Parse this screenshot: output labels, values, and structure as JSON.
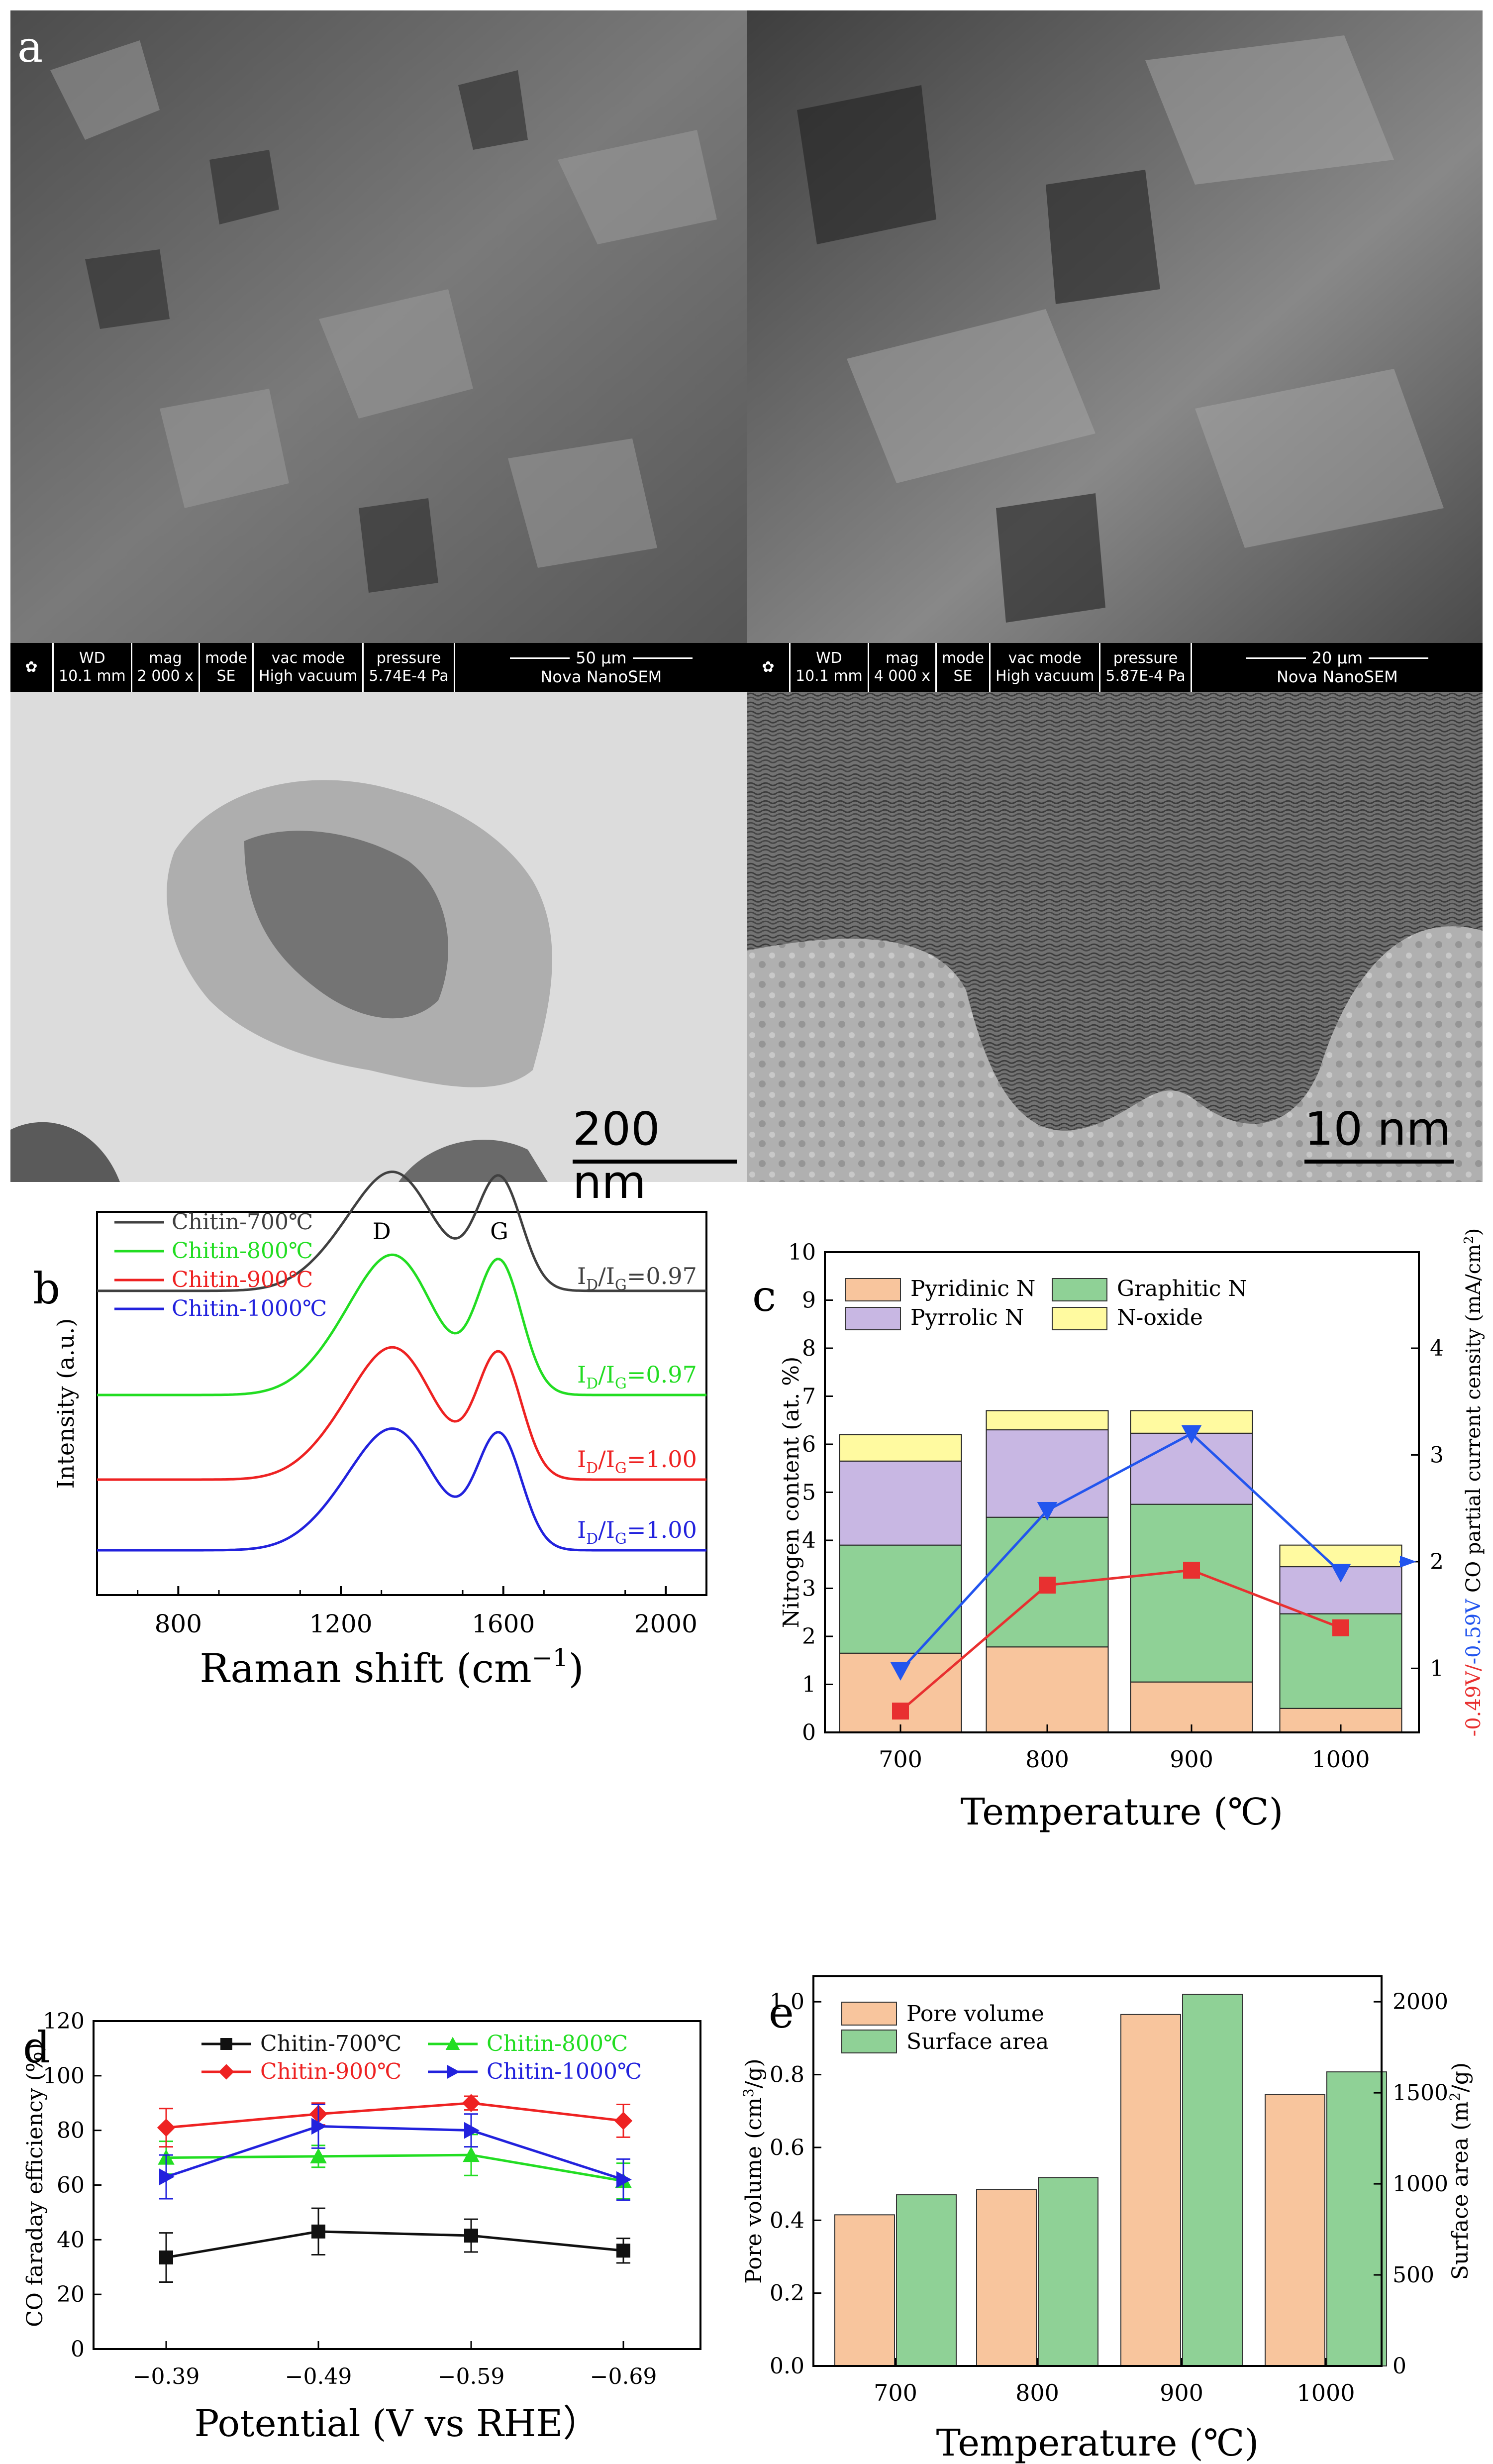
{
  "figure": {
    "panel_labels": {
      "a": "a",
      "b": "b",
      "c": "c",
      "d": "d",
      "e": "e"
    },
    "sem": [
      {
        "wd_label": "WD",
        "wd": "10.1 mm",
        "mag_label": "mag",
        "mag": "2 000 x",
        "mode_label": "mode",
        "mode": "SE",
        "vac_label": "vac mode",
        "vac": "High vacuum",
        "pressure_label": "pressure",
        "pressure": "5.74E-4 Pa",
        "scale": "50 µm",
        "instrument": "Nova NanoSEM"
      },
      {
        "wd_label": "WD",
        "wd": "10.1 mm",
        "mag_label": "mag",
        "mag": "4 000 x",
        "mode_label": "mode",
        "mode": "SE",
        "vac_label": "vac mode",
        "vac": "High vacuum",
        "pressure_label": "pressure",
        "pressure": "5.87E-4 Pa",
        "scale": "20 µm",
        "instrument": "Nova NanoSEM"
      }
    ],
    "tem_scales": [
      "200 nm",
      "10 nm"
    ]
  },
  "chart_data": [
    {
      "panel": "b",
      "type": "line",
      "xlabel": "Raman shift (cm",
      "xlabel_sup": "−1",
      "xlabel_tail": ")",
      "ylabel": "Intensity (a.u.)",
      "xlim": [
        600,
        2100
      ],
      "xticks": [
        800,
        1200,
        1600,
        2000
      ],
      "peaks": [
        {
          "label": "D",
          "x": 1340
        },
        {
          "label": "G",
          "x": 1590
        }
      ],
      "series": [
        {
          "name": "Chitin-700℃",
          "color": "#404040",
          "offset": 3,
          "ratio_main": "I",
          "ratio_sub1": "D",
          "ratio_mid": "/I",
          "ratio_sub2": "G",
          "ratio_val": "=0.97"
        },
        {
          "name": "Chitin-800℃",
          "color": "#22dd22",
          "offset": 2,
          "ratio_main": "I",
          "ratio_sub1": "D",
          "ratio_mid": "/I",
          "ratio_sub2": "G",
          "ratio_val": "=0.97"
        },
        {
          "name": "Chitin-900℃",
          "color": "#ee2222",
          "offset": 1,
          "ratio_main": "I",
          "ratio_sub1": "D",
          "ratio_mid": "/I",
          "ratio_sub2": "G",
          "ratio_val": "=1.00"
        },
        {
          "name": "Chitin-1000℃",
          "color": "#2222dd",
          "offset": 0,
          "ratio_main": "I",
          "ratio_sub1": "D",
          "ratio_mid": "/I",
          "ratio_sub2": "G",
          "ratio_val": "=1.00"
        }
      ]
    },
    {
      "panel": "c",
      "type": "bar",
      "stacked": true,
      "xlabel": "Temperature (℃)",
      "ylabel": "Nitrogen content (at. %)",
      "y2label_a": "-0.49V/",
      "y2label_b": "-0.59V",
      "y2label_c": " CO partial current censity (mA/cm",
      "y2label_sup": "2",
      "y2label_d": ")",
      "categories": [
        "700",
        "800",
        "900",
        "1000"
      ],
      "ylim": [
        0,
        10
      ],
      "y2lim": [
        0.4,
        4.9
      ],
      "yticks": [
        0,
        1,
        2,
        3,
        4,
        5,
        6,
        7,
        8,
        9,
        10
      ],
      "y2ticks": [
        1,
        2,
        3,
        4
      ],
      "series": [
        {
          "name": "Pyridinic N",
          "color": "#f8c59d",
          "values": [
            1.65,
            1.78,
            1.05,
            0.5
          ]
        },
        {
          "name": "Graphitic N",
          "color": "#8fd196",
          "values": [
            2.25,
            2.7,
            3.7,
            1.97
          ]
        },
        {
          "name": "Pyrrolic N",
          "color": "#c8b7e3",
          "values": [
            1.75,
            1.82,
            1.48,
            0.98
          ]
        },
        {
          "name": "N-oxide",
          "color": "#fffaa0",
          "values": [
            0.55,
            0.4,
            0.47,
            0.45
          ]
        }
      ],
      "lines": [
        {
          "name": "-0.49V",
          "color": "#e83030",
          "marker": "square",
          "values": [
            0.6,
            1.78,
            1.92,
            1.38
          ]
        },
        {
          "name": "-0.59V",
          "color": "#2255ee",
          "marker": "triangle-down",
          "values": [
            0.98,
            2.48,
            3.2,
            1.9
          ]
        }
      ]
    },
    {
      "panel": "d",
      "type": "line",
      "xlabel": "Potential (V vs RHE）",
      "ylabel": "CO faraday efficiency (%)",
      "categories": [
        "-0.39",
        "-0.49",
        "-0.59",
        "-0.69"
      ],
      "ylim": [
        0,
        120
      ],
      "yticks": [
        0,
        20,
        40,
        60,
        80,
        100,
        120
      ],
      "series": [
        {
          "name": "Chitin-700℃",
          "color": "#111111",
          "marker": "square",
          "values": [
            33.5,
            43,
            41.5,
            36
          ],
          "errors": [
            9,
            8.5,
            6,
            4.5
          ]
        },
        {
          "name": "Chitin-800℃",
          "color": "#22dd22",
          "marker": "triangle-up",
          "values": [
            70,
            70.5,
            71,
            61.5
          ],
          "errors": [
            6,
            4,
            7.5,
            6.5
          ]
        },
        {
          "name": "Chitin-900℃",
          "color": "#ee2222",
          "marker": "diamond",
          "values": [
            81,
            86,
            90,
            83.5
          ],
          "errors": [
            7,
            4,
            2.5,
            6
          ]
        },
        {
          "name": "Chitin-1000℃",
          "color": "#2222dd",
          "marker": "triangle-right",
          "values": [
            63,
            81.5,
            80,
            62
          ],
          "errors": [
            8,
            8,
            6,
            7.5
          ]
        }
      ]
    },
    {
      "panel": "e",
      "type": "bar",
      "xlabel": "Temperature (℃)",
      "ylabel_a": "Pore volume (cm",
      "ylabel_sup": "3",
      "ylabel_b": "/g)",
      "y2label_a": "Surface area (m",
      "y2label_sup": "2",
      "y2label_b": "/g)",
      "categories": [
        "700",
        "800",
        "900",
        "1000"
      ],
      "ylim": [
        0,
        1.07
      ],
      "y2lim": [
        0,
        2140
      ],
      "yticks": [
        "0.0",
        "0.2",
        "0.4",
        "0.6",
        "0.8",
        "1.0"
      ],
      "y2ticks": [
        0,
        500,
        1000,
        1500,
        2000
      ],
      "series": [
        {
          "name": "Pore volume",
          "color": "#f8c59d",
          "axis": "left",
          "values": [
            0.415,
            0.485,
            0.965,
            0.745
          ]
        },
        {
          "name": "Surface area",
          "color": "#8fd196",
          "axis": "right",
          "values": [
            940,
            1035,
            2040,
            1615
          ]
        }
      ]
    }
  ]
}
